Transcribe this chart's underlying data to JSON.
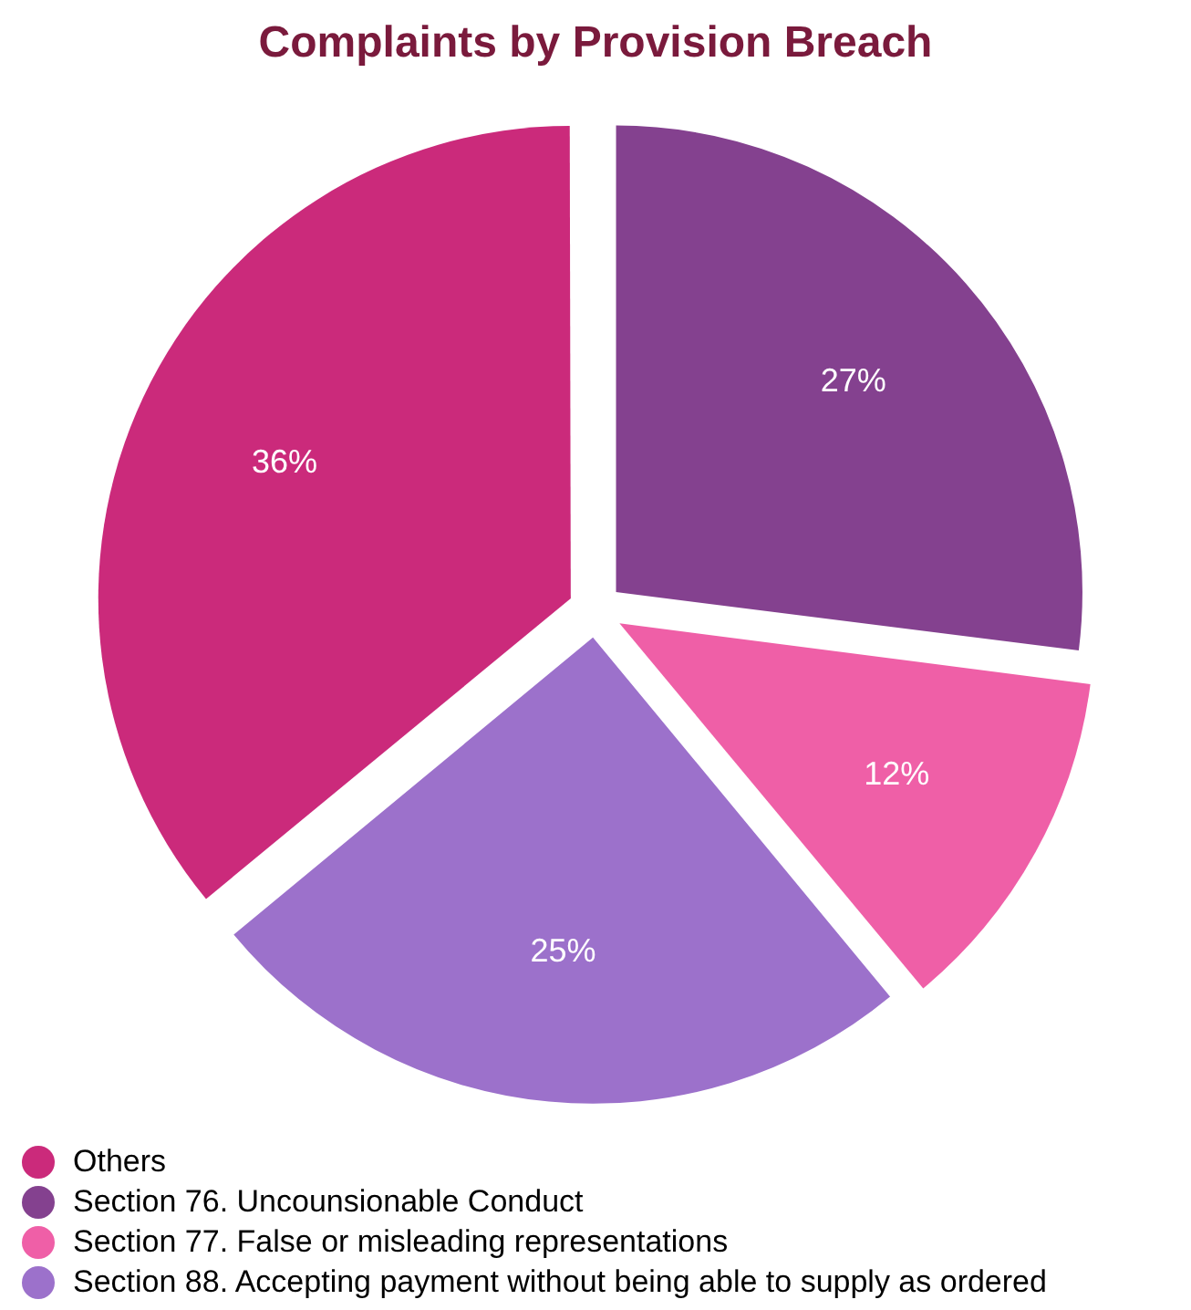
{
  "chart_data": {
    "type": "pie",
    "title": "Complaints by Provision Breach",
    "categories": [
      "Others",
      "Section 76. Uncounsionable Conduct",
      "Section 77. False or misleading representations",
      "Section 88. Accepting payment without being able to supply as ordered"
    ],
    "values": [
      36,
      27,
      12,
      25
    ],
    "colors": [
      "#cb2a7b",
      "#84418f",
      "#ef5fa7",
      "#9c71cb"
    ],
    "value_labels": [
      "36%",
      "27%",
      "12%",
      "25%"
    ],
    "legend": "bottom"
  }
}
